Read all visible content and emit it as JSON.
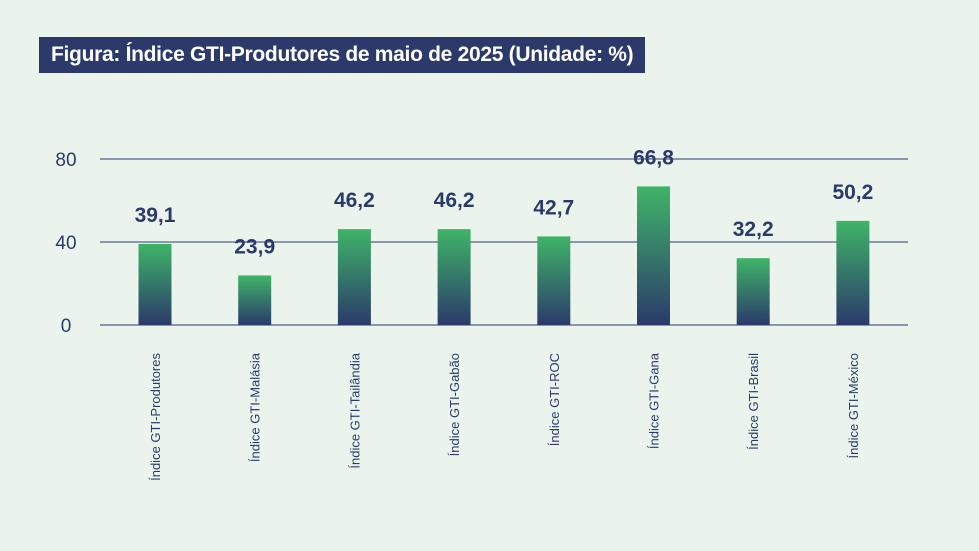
{
  "title": "Figura: Índice GTI-Produtores de maio de 2025 (Unidade: %)",
  "colors": {
    "title_bg": "#2b3a6b",
    "bar_top": "#3fb468",
    "bar_bottom": "#2b3a6b",
    "grid": "#2b3a6b",
    "text": "#2b3a6b"
  },
  "chart_data": {
    "type": "bar",
    "title": "Figura: Índice GTI-Produtores de maio de 2025 (Unidade: %)",
    "xlabel": "",
    "ylabel": "",
    "ylim": [
      0,
      80
    ],
    "yticks": [
      0,
      40,
      80
    ],
    "categories": [
      "Índice GTI-Produtores",
      "Índice GTI-Malásia",
      "Índice GTI-Tailândia",
      "Índice GTI-Gabão",
      "Índice GTI-ROC",
      "Índice GTI-Gana",
      "Índice GTI-Brasil",
      "Índice GTI-México"
    ],
    "values": [
      39.1,
      23.9,
      46.2,
      46.2,
      42.7,
      66.8,
      32.2,
      50.2
    ],
    "value_labels": [
      "39,1",
      "23,9",
      "46,2",
      "46,2",
      "42,7",
      "66,8",
      "32,2",
      "50,2"
    ],
    "grid": true,
    "legend": "none"
  }
}
